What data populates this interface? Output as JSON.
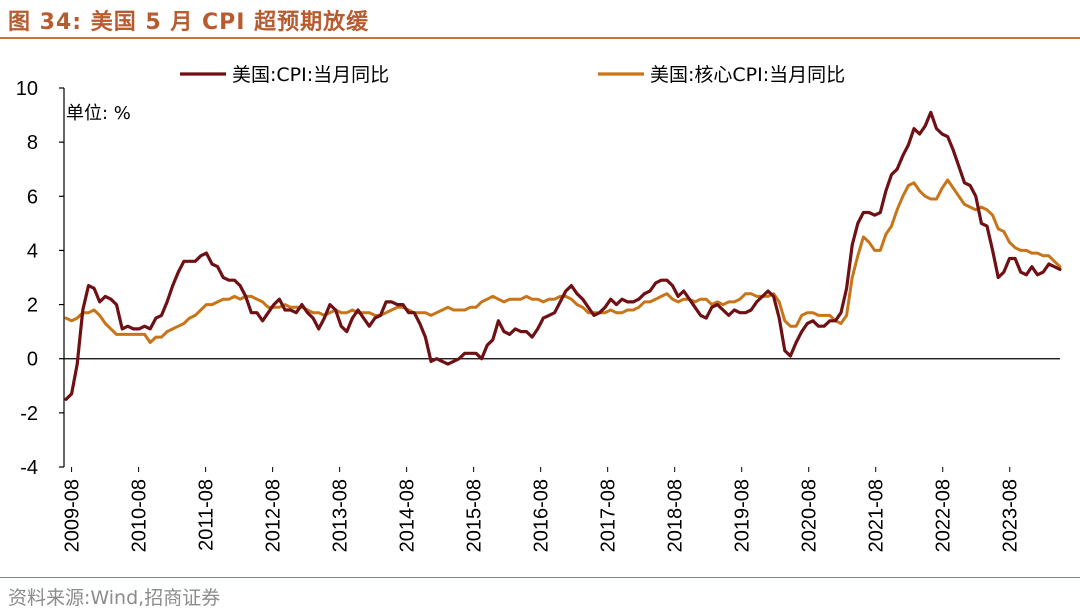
{
  "header": {
    "title": "图 34:  美国 5 月 CPI 超预期放缓"
  },
  "footer": {
    "source": "资料来源:Wind,招商证券"
  },
  "colors": {
    "headline": "#6e1014",
    "core": "#c87418",
    "accent": "#b85c30"
  },
  "chart_data": {
    "type": "line",
    "title": "美国 5 月 CPI 超预期放缓",
    "unit_label": "单位: %",
    "ylim": [
      -4,
      10
    ],
    "yticks": [
      -4,
      -2,
      0,
      2,
      4,
      6,
      8,
      10
    ],
    "xtick_labels": [
      "2009-08",
      "2010-08",
      "2011-08",
      "2012-08",
      "2013-08",
      "2014-08",
      "2015-08",
      "2016-08",
      "2017-08",
      "2018-08",
      "2019-08",
      "2020-08",
      "2021-08",
      "2022-08",
      "2023-08"
    ],
    "x_start": "2009-07",
    "x_end": "2024-05",
    "series": [
      {
        "name": "美国:CPI:当月同比",
        "color": "#6e1014",
        "values": [
          -1.5,
          -1.3,
          -0.2,
          1.8,
          2.7,
          2.6,
          2.1,
          2.3,
          2.2,
          2.0,
          1.1,
          1.2,
          1.1,
          1.1,
          1.2,
          1.1,
          1.5,
          1.6,
          2.1,
          2.7,
          3.2,
          3.6,
          3.6,
          3.6,
          3.8,
          3.9,
          3.5,
          3.4,
          3.0,
          2.9,
          2.9,
          2.7,
          2.3,
          1.7,
          1.7,
          1.4,
          1.7,
          2.0,
          2.2,
          1.8,
          1.8,
          1.7,
          2.0,
          1.7,
          1.5,
          1.1,
          1.5,
          2.0,
          1.8,
          1.2,
          1.0,
          1.5,
          1.8,
          1.5,
          1.2,
          1.5,
          1.6,
          2.1,
          2.1,
          2.0,
          2.0,
          1.7,
          1.7,
          1.3,
          0.8,
          -0.1,
          0.0,
          -0.1,
          -0.2,
          -0.1,
          0.0,
          0.2,
          0.2,
          0.2,
          0.0,
          0.5,
          0.7,
          1.4,
          1.0,
          0.9,
          1.1,
          1.0,
          1.0,
          0.8,
          1.1,
          1.5,
          1.6,
          1.7,
          2.1,
          2.5,
          2.7,
          2.4,
          2.2,
          1.9,
          1.6,
          1.7,
          1.9,
          2.2,
          2.0,
          2.2,
          2.1,
          2.1,
          2.2,
          2.4,
          2.5,
          2.8,
          2.9,
          2.9,
          2.7,
          2.3,
          2.5,
          2.2,
          1.9,
          1.6,
          1.5,
          1.9,
          2.0,
          1.8,
          1.6,
          1.8,
          1.7,
          1.7,
          1.8,
          2.1,
          2.3,
          2.5,
          2.3,
          1.5,
          0.3,
          0.1,
          0.6,
          1.0,
          1.3,
          1.4,
          1.2,
          1.2,
          1.4,
          1.4,
          1.7,
          2.6,
          4.2,
          5.0,
          5.4,
          5.4,
          5.3,
          5.4,
          6.2,
          6.8,
          7.0,
          7.5,
          7.9,
          8.5,
          8.3,
          8.6,
          9.1,
          8.5,
          8.3,
          8.2,
          7.7,
          7.1,
          6.5,
          6.4,
          6.0,
          5.0,
          4.9,
          4.0,
          3.0,
          3.2,
          3.7,
          3.7,
          3.2,
          3.1,
          3.4,
          3.1,
          3.2,
          3.5,
          3.4,
          3.3
        ]
      },
      {
        "name": "美国:核心CPI:当月同比",
        "color": "#c87418",
        "values": [
          1.5,
          1.4,
          1.5,
          1.7,
          1.7,
          1.8,
          1.6,
          1.3,
          1.1,
          0.9,
          0.9,
          0.9,
          0.9,
          0.9,
          0.9,
          0.6,
          0.8,
          0.8,
          1.0,
          1.1,
          1.2,
          1.3,
          1.5,
          1.6,
          1.8,
          2.0,
          2.0,
          2.1,
          2.2,
          2.2,
          2.3,
          2.2,
          2.3,
          2.3,
          2.2,
          2.1,
          1.9,
          1.9,
          1.9,
          2.0,
          1.9,
          1.9,
          1.9,
          1.8,
          1.7,
          1.7,
          1.6,
          1.7,
          1.8,
          1.7,
          1.7,
          1.8,
          1.7,
          1.7,
          1.7,
          1.6,
          1.6,
          1.7,
          1.8,
          1.9,
          1.9,
          1.8,
          1.7,
          1.7,
          1.7,
          1.6,
          1.7,
          1.8,
          1.9,
          1.8,
          1.8,
          1.8,
          1.9,
          1.9,
          2.1,
          2.2,
          2.3,
          2.2,
          2.1,
          2.2,
          2.2,
          2.2,
          2.3,
          2.2,
          2.2,
          2.1,
          2.2,
          2.2,
          2.3,
          2.3,
          2.2,
          2.0,
          1.9,
          1.7,
          1.7,
          1.7,
          1.7,
          1.8,
          1.7,
          1.7,
          1.8,
          1.8,
          1.9,
          2.1,
          2.1,
          2.2,
          2.3,
          2.4,
          2.2,
          2.1,
          2.2,
          2.2,
          2.1,
          2.2,
          2.2,
          2.0,
          2.1,
          2.0,
          2.1,
          2.1,
          2.2,
          2.4,
          2.4,
          2.3,
          2.3,
          2.3,
          2.4,
          2.1,
          1.4,
          1.2,
          1.2,
          1.6,
          1.7,
          1.7,
          1.6,
          1.6,
          1.6,
          1.4,
          1.3,
          1.6,
          3.0,
          3.8,
          4.5,
          4.3,
          4.0,
          4.0,
          4.6,
          4.9,
          5.5,
          6.0,
          6.4,
          6.5,
          6.2,
          6.0,
          5.9,
          5.9,
          6.3,
          6.6,
          6.3,
          6.0,
          5.7,
          5.6,
          5.5,
          5.6,
          5.5,
          5.3,
          4.8,
          4.7,
          4.3,
          4.1,
          4.0,
          4.0,
          3.9,
          3.9,
          3.8,
          3.8,
          3.6,
          3.4
        ]
      }
    ]
  }
}
